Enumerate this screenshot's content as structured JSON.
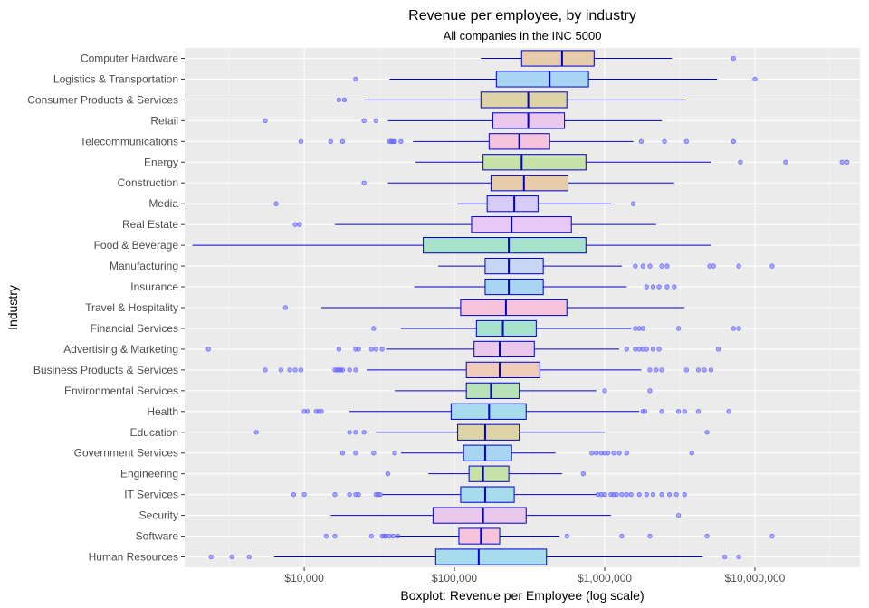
{
  "chart_data": {
    "type": "boxplot",
    "title": "Revenue per employee, by industry",
    "subtitle": "All companies in the INC 5000",
    "xlabel": "Boxplot: Revenue per Employee (log scale)",
    "ylabel": "Industry",
    "x_scale": "log10",
    "xlim": [
      1600,
      50000000
    ],
    "x_ticks": [
      {
        "value": 10000,
        "label": "$10,000"
      },
      {
        "value": 100000,
        "label": "$100,000"
      },
      {
        "value": 1000000,
        "label": "$1,000,000"
      },
      {
        "value": 10000000,
        "label": "$10,000,000"
      }
    ],
    "grid": true,
    "box_outline_color": "#0000cc",
    "outlier_color": "#6666ff",
    "industries": [
      {
        "name": "Computer Hardware",
        "whisker_low": 150000,
        "q1": 280000,
        "median": 520000,
        "q3": 850000,
        "whisker_high": 2800000,
        "outliers": [
          7200000
        ],
        "fill": "#e6ccaa"
      },
      {
        "name": "Logistics & Transportation",
        "whisker_low": 37000,
        "q1": 190000,
        "median": 430000,
        "q3": 780000,
        "whisker_high": 5600000,
        "outliers": [
          22000,
          10000000
        ],
        "fill": "#a8d6f2"
      },
      {
        "name": "Consumer Products & Services",
        "whisker_low": 25000,
        "q1": 150000,
        "median": 310000,
        "q3": 560000,
        "whisker_high": 3500000,
        "outliers": [
          17000,
          18500
        ],
        "fill": "#dcd4a6"
      },
      {
        "name": "Retail",
        "whisker_low": 36000,
        "q1": 180000,
        "median": 310000,
        "q3": 540000,
        "whisker_high": 2400000,
        "outliers": [
          5500,
          25000,
          30000
        ],
        "fill": "#eac8ee"
      },
      {
        "name": "Telecommunications",
        "whisker_low": 53000,
        "q1": 170000,
        "median": 270000,
        "q3": 430000,
        "whisker_high": 1550000,
        "outliers": [
          9500,
          15000,
          18000,
          37000,
          38000,
          39000,
          40000,
          44000,
          1750000,
          2500000,
          3500000,
          7200000
        ],
        "fill": "#f5c3dc"
      },
      {
        "name": "Energy",
        "whisker_low": 55000,
        "q1": 155000,
        "median": 280000,
        "q3": 750000,
        "whisker_high": 5100000,
        "outliers": [
          8000000,
          16000000,
          38000000,
          41000000
        ],
        "fill": "#c6e2a6"
      },
      {
        "name": "Construction",
        "whisker_low": 36000,
        "q1": 175000,
        "median": 290000,
        "q3": 570000,
        "whisker_high": 2900000,
        "outliers": [
          25000
        ],
        "fill": "#e6ccaa"
      },
      {
        "name": "Media",
        "whisker_low": 105000,
        "q1": 165000,
        "median": 250000,
        "q3": 360000,
        "whisker_high": 1100000,
        "outliers": [
          6500,
          1550000
        ],
        "fill": "#d6ccf5"
      },
      {
        "name": "Real Estate",
        "whisker_low": 16000,
        "q1": 130000,
        "median": 240000,
        "q3": 600000,
        "whisker_high": 2200000,
        "outliers": [
          8700,
          9300
        ],
        "fill": "#eac8f5"
      },
      {
        "name": "Food & Beverage",
        "whisker_low": 1800,
        "q1": 62000,
        "median": 230000,
        "q3": 750000,
        "whisker_high": 5100000,
        "outliers": [],
        "fill": "#a6e2cc"
      },
      {
        "name": "Manufacturing",
        "whisker_low": 78000,
        "q1": 160000,
        "median": 230000,
        "q3": 390000,
        "whisker_high": 1300000,
        "outliers": [
          1600000,
          1800000,
          2000000,
          2400000,
          2600000,
          5000000,
          5300000,
          7800000,
          13000000
        ],
        "fill": "#c8d6f5"
      },
      {
        "name": "Insurance",
        "whisker_low": 54000,
        "q1": 160000,
        "median": 230000,
        "q3": 390000,
        "whisker_high": 1400000,
        "outliers": [
          1900000,
          2100000,
          2300000,
          2600000,
          2900000
        ],
        "fill": "#a8d6f2"
      },
      {
        "name": "Travel & Hospitality",
        "whisker_low": 13000,
        "q1": 110000,
        "median": 220000,
        "q3": 560000,
        "whisker_high": 3400000,
        "outliers": [
          7500
        ],
        "fill": "#f5c3dc"
      },
      {
        "name": "Financial Services",
        "whisker_low": 44000,
        "q1": 140000,
        "median": 210000,
        "q3": 350000,
        "whisker_high": 1500000,
        "outliers": [
          29000,
          1600000,
          1700000,
          1800000,
          3100000,
          7200000,
          7800000
        ],
        "fill": "#a6e2cc"
      },
      {
        "name": "Advertising & Marketing",
        "whisker_low": 35000,
        "q1": 135000,
        "median": 200000,
        "q3": 340000,
        "whisker_high": 1250000,
        "outliers": [
          2300,
          17000,
          22000,
          23000,
          28000,
          30000,
          33000,
          1400000,
          1600000,
          1700000,
          1800000,
          1900000,
          2100000,
          2300000,
          5700000
        ],
        "fill": "#eac8ee"
      },
      {
        "name": "Business Products & Services",
        "whisker_low": 26000,
        "q1": 120000,
        "median": 200000,
        "q3": 370000,
        "whisker_high": 1750000,
        "outliers": [
          5500,
          7000,
          8000,
          8700,
          9500,
          16000,
          16500,
          17000,
          17500,
          18000,
          20000,
          22000,
          2000000,
          2200000,
          2400000,
          3500000,
          4200000,
          4600000,
          5100000
        ],
        "fill": "#f0ccb8"
      },
      {
        "name": "Environmental Services",
        "whisker_low": 40000,
        "q1": 120000,
        "median": 175000,
        "q3": 270000,
        "whisker_high": 880000,
        "outliers": [
          1000000,
          2000000
        ],
        "fill": "#b8e2b8"
      },
      {
        "name": "Health",
        "whisker_low": 20000,
        "q1": 95000,
        "median": 170000,
        "q3": 300000,
        "whisker_high": 1700000,
        "outliers": [
          10000,
          10500,
          12000,
          12500,
          13000,
          1800000,
          1850000,
          2400000,
          3100000,
          3400000,
          4200000,
          6700000
        ],
        "fill": "#a6dcec"
      },
      {
        "name": "Education",
        "whisker_low": 30000,
        "q1": 105000,
        "median": 160000,
        "q3": 270000,
        "whisker_high": 1000000,
        "outliers": [
          4800,
          20000,
          22000,
          25000,
          4800000
        ],
        "fill": "#dcd4a6"
      },
      {
        "name": "Government Services",
        "whisker_low": 44000,
        "q1": 115000,
        "median": 160000,
        "q3": 240000,
        "whisker_high": 470000,
        "outliers": [
          18000,
          22000,
          29000,
          40000,
          820000,
          880000,
          950000,
          1000000,
          1050000,
          1150000,
          1250000,
          1400000,
          3800000
        ],
        "fill": "#a8d6f2"
      },
      {
        "name": "Engineering",
        "whisker_low": 67000,
        "q1": 125000,
        "median": 155000,
        "q3": 230000,
        "whisker_high": 520000,
        "outliers": [
          36000,
          720000
        ],
        "fill": "#c6e2a6"
      },
      {
        "name": "IT Services",
        "whisker_low": 33000,
        "q1": 110000,
        "median": 160000,
        "q3": 250000,
        "whisker_high": 880000,
        "outliers": [
          8500,
          10000,
          16000,
          20000,
          22000,
          23000,
          30000,
          31000,
          32000,
          900000,
          950000,
          1000000,
          1100000,
          1150000,
          1200000,
          1300000,
          1400000,
          1500000,
          1700000,
          1900000,
          2100000,
          2400000,
          2700000,
          3000000,
          3400000
        ],
        "fill": "#a6dcec"
      },
      {
        "name": "Security",
        "whisker_low": 15000,
        "q1": 72000,
        "median": 155000,
        "q3": 300000,
        "whisker_high": 1100000,
        "outliers": [
          3100000
        ],
        "fill": "#eac8ee"
      },
      {
        "name": "Software",
        "whisker_low": 40000,
        "q1": 107000,
        "median": 150000,
        "q3": 200000,
        "whisker_high": 500000,
        "outliers": [
          14000,
          16000,
          28000,
          33000,
          34000,
          35000,
          37000,
          39000,
          42000,
          560000,
          1300000,
          2000000,
          4800000,
          13000000
        ],
        "fill": "#f5c3dc"
      },
      {
        "name": "Human Resources",
        "whisker_low": 6300,
        "q1": 75000,
        "median": 145000,
        "q3": 410000,
        "whisker_high": 4500000,
        "outliers": [
          2400,
          3300,
          4300,
          6300000,
          7800000
        ],
        "fill": "#a6dcec"
      }
    ]
  }
}
